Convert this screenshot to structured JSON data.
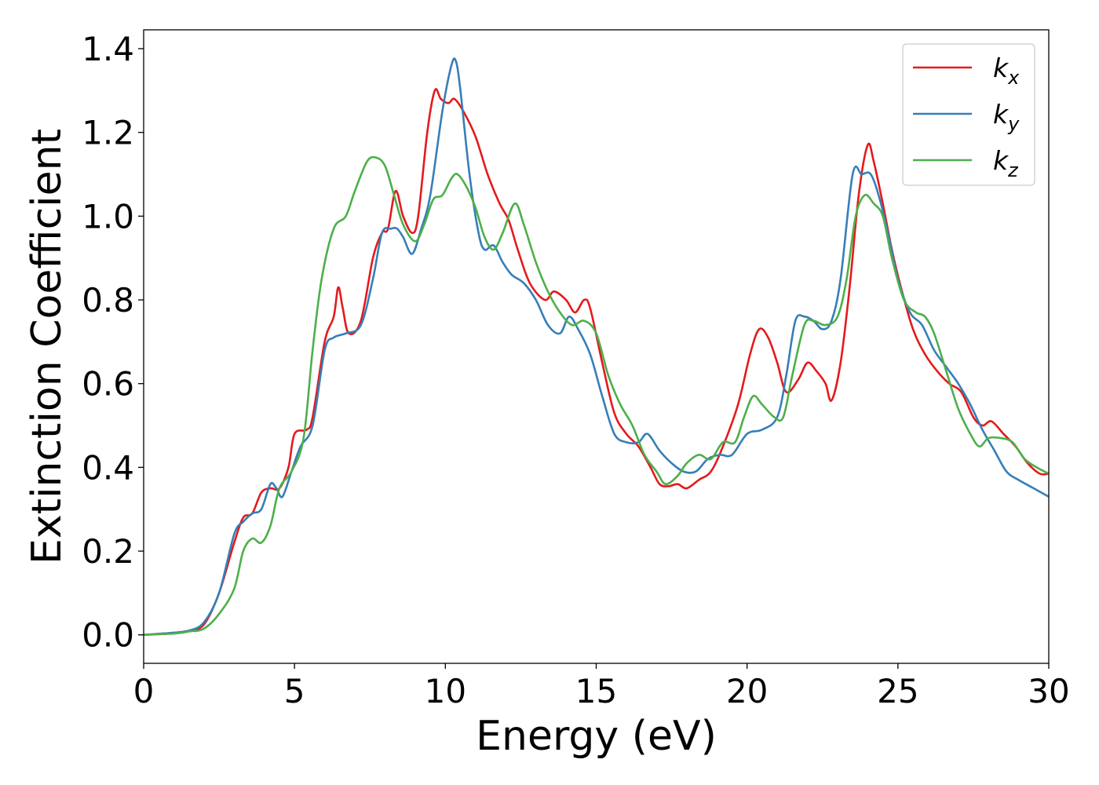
{
  "chart_data": {
    "type": "line",
    "xlabel": "Energy (eV)",
    "ylabel": "Extinction Coefficient",
    "xlim": [
      0,
      30
    ],
    "ylim": [
      -0.068,
      1.445
    ],
    "xticks": [
      0,
      5,
      10,
      15,
      20,
      25,
      30
    ],
    "xtick_labels": [
      "0",
      "5",
      "10",
      "15",
      "20",
      "25",
      "30"
    ],
    "yticks": [
      0.0,
      0.2,
      0.4,
      0.6,
      0.8,
      1.0,
      1.2,
      1.4
    ],
    "ytick_labels": [
      "0.0",
      "0.2",
      "0.4",
      "0.6",
      "0.8",
      "1.0",
      "1.2",
      "1.4"
    ],
    "grid": false,
    "legend_position": "top-right",
    "series": [
      {
        "name": "k_x",
        "label_base": "k",
        "label_sub": "x",
        "color": "#e41a1c",
        "points": [
          [
            0,
            0
          ],
          [
            1,
            0.005
          ],
          [
            1.5,
            0.01
          ],
          [
            2,
            0.025
          ],
          [
            2.5,
            0.1
          ],
          [
            3,
            0.22
          ],
          [
            3.3,
            0.28
          ],
          [
            3.6,
            0.29
          ],
          [
            3.9,
            0.34
          ],
          [
            4.2,
            0.35
          ],
          [
            4.5,
            0.35
          ],
          [
            4.8,
            0.4
          ],
          [
            5.0,
            0.48
          ],
          [
            5.4,
            0.49
          ],
          [
            5.6,
            0.52
          ],
          [
            6.0,
            0.7
          ],
          [
            6.3,
            0.76
          ],
          [
            6.45,
            0.83
          ],
          [
            6.6,
            0.78
          ],
          [
            6.8,
            0.72
          ],
          [
            7.2,
            0.75
          ],
          [
            7.6,
            0.9
          ],
          [
            7.9,
            0.96
          ],
          [
            8.1,
            0.97
          ],
          [
            8.35,
            1.06
          ],
          [
            8.6,
            1.0
          ],
          [
            8.9,
            0.96
          ],
          [
            9.1,
            1.0
          ],
          [
            9.4,
            1.2
          ],
          [
            9.65,
            1.3
          ],
          [
            9.85,
            1.28
          ],
          [
            10.1,
            1.27
          ],
          [
            10.3,
            1.28
          ],
          [
            10.6,
            1.25
          ],
          [
            11.0,
            1.19
          ],
          [
            11.4,
            1.1
          ],
          [
            11.8,
            1.03
          ],
          [
            12.1,
            0.99
          ],
          [
            12.4,
            0.92
          ],
          [
            12.8,
            0.84
          ],
          [
            13.3,
            0.8
          ],
          [
            13.6,
            0.82
          ],
          [
            14.0,
            0.8
          ],
          [
            14.3,
            0.77
          ],
          [
            14.6,
            0.8
          ],
          [
            14.8,
            0.78
          ],
          [
            15.2,
            0.65
          ],
          [
            15.6,
            0.53
          ],
          [
            16.0,
            0.48
          ],
          [
            16.4,
            0.45
          ],
          [
            16.8,
            0.4
          ],
          [
            17.1,
            0.36
          ],
          [
            17.4,
            0.355
          ],
          [
            17.7,
            0.36
          ],
          [
            18.0,
            0.35
          ],
          [
            18.4,
            0.37
          ],
          [
            18.8,
            0.39
          ],
          [
            19.2,
            0.45
          ],
          [
            19.7,
            0.55
          ],
          [
            20.1,
            0.67
          ],
          [
            20.4,
            0.73
          ],
          [
            20.7,
            0.71
          ],
          [
            21.0,
            0.65
          ],
          [
            21.3,
            0.58
          ],
          [
            21.7,
            0.61
          ],
          [
            22.0,
            0.65
          ],
          [
            22.3,
            0.63
          ],
          [
            22.6,
            0.6
          ],
          [
            22.8,
            0.56
          ],
          [
            23.1,
            0.65
          ],
          [
            23.4,
            0.83
          ],
          [
            23.7,
            1.05
          ],
          [
            24.0,
            1.17
          ],
          [
            24.2,
            1.13
          ],
          [
            24.5,
            1.03
          ],
          [
            24.8,
            0.92
          ],
          [
            25.1,
            0.83
          ],
          [
            25.5,
            0.73
          ],
          [
            25.9,
            0.67
          ],
          [
            26.3,
            0.63
          ],
          [
            26.7,
            0.6
          ],
          [
            27.1,
            0.58
          ],
          [
            27.5,
            0.52
          ],
          [
            27.8,
            0.5
          ],
          [
            28.1,
            0.51
          ],
          [
            28.5,
            0.48
          ],
          [
            28.9,
            0.45
          ],
          [
            29.3,
            0.41
          ],
          [
            29.7,
            0.385
          ],
          [
            30.0,
            0.385
          ]
        ]
      },
      {
        "name": "k_y",
        "label_base": "k",
        "label_sub": "y",
        "color": "#377eb8",
        "points": [
          [
            0,
            0
          ],
          [
            1,
            0.005
          ],
          [
            1.5,
            0.01
          ],
          [
            2,
            0.03
          ],
          [
            2.5,
            0.1
          ],
          [
            3,
            0.24
          ],
          [
            3.3,
            0.27
          ],
          [
            3.6,
            0.29
          ],
          [
            3.9,
            0.3
          ],
          [
            4.2,
            0.36
          ],
          [
            4.4,
            0.35
          ],
          [
            4.6,
            0.33
          ],
          [
            4.9,
            0.39
          ],
          [
            5.2,
            0.45
          ],
          [
            5.6,
            0.5
          ],
          [
            6.0,
            0.68
          ],
          [
            6.3,
            0.71
          ],
          [
            6.7,
            0.72
          ],
          [
            7.2,
            0.74
          ],
          [
            7.6,
            0.85
          ],
          [
            7.9,
            0.96
          ],
          [
            8.2,
            0.97
          ],
          [
            8.4,
            0.97
          ],
          [
            8.6,
            0.95
          ],
          [
            8.9,
            0.91
          ],
          [
            9.2,
            0.97
          ],
          [
            9.5,
            1.05
          ],
          [
            9.9,
            1.25
          ],
          [
            10.2,
            1.36
          ],
          [
            10.35,
            1.37
          ],
          [
            10.5,
            1.3
          ],
          [
            10.8,
            1.1
          ],
          [
            11.1,
            0.96
          ],
          [
            11.3,
            0.92
          ],
          [
            11.6,
            0.93
          ],
          [
            11.9,
            0.89
          ],
          [
            12.2,
            0.86
          ],
          [
            12.6,
            0.84
          ],
          [
            13.0,
            0.8
          ],
          [
            13.4,
            0.74
          ],
          [
            13.8,
            0.72
          ],
          [
            14.1,
            0.76
          ],
          [
            14.4,
            0.73
          ],
          [
            14.8,
            0.67
          ],
          [
            15.2,
            0.57
          ],
          [
            15.6,
            0.48
          ],
          [
            16.0,
            0.46
          ],
          [
            16.4,
            0.46
          ],
          [
            16.7,
            0.48
          ],
          [
            17.1,
            0.44
          ],
          [
            17.5,
            0.41
          ],
          [
            17.9,
            0.39
          ],
          [
            18.3,
            0.39
          ],
          [
            18.7,
            0.42
          ],
          [
            19.1,
            0.43
          ],
          [
            19.5,
            0.43
          ],
          [
            20.0,
            0.48
          ],
          [
            20.5,
            0.49
          ],
          [
            21.0,
            0.52
          ],
          [
            21.3,
            0.62
          ],
          [
            21.6,
            0.75
          ],
          [
            21.9,
            0.76
          ],
          [
            22.2,
            0.75
          ],
          [
            22.5,
            0.73
          ],
          [
            22.8,
            0.75
          ],
          [
            23.1,
            0.85
          ],
          [
            23.5,
            1.1
          ],
          [
            23.8,
            1.1
          ],
          [
            24.1,
            1.1
          ],
          [
            24.4,
            1.04
          ],
          [
            24.7,
            0.95
          ],
          [
            25.0,
            0.85
          ],
          [
            25.4,
            0.77
          ],
          [
            25.8,
            0.74
          ],
          [
            26.2,
            0.68
          ],
          [
            26.6,
            0.64
          ],
          [
            27.0,
            0.6
          ],
          [
            27.4,
            0.55
          ],
          [
            27.8,
            0.49
          ],
          [
            28.2,
            0.44
          ],
          [
            28.6,
            0.39
          ],
          [
            29.0,
            0.37
          ],
          [
            29.5,
            0.35
          ],
          [
            30.0,
            0.33
          ]
        ]
      },
      {
        "name": "k_z",
        "label_base": "k",
        "label_sub": "z",
        "color": "#4daf4a",
        "points": [
          [
            0,
            0
          ],
          [
            1,
            0.003
          ],
          [
            1.5,
            0.008
          ],
          [
            2,
            0.015
          ],
          [
            2.5,
            0.05
          ],
          [
            3,
            0.11
          ],
          [
            3.3,
            0.2
          ],
          [
            3.6,
            0.23
          ],
          [
            3.9,
            0.22
          ],
          [
            4.2,
            0.26
          ],
          [
            4.5,
            0.35
          ],
          [
            4.9,
            0.39
          ],
          [
            5.3,
            0.47
          ],
          [
            5.6,
            0.68
          ],
          [
            5.9,
            0.85
          ],
          [
            6.3,
            0.97
          ],
          [
            6.7,
            1.0
          ],
          [
            7.0,
            1.06
          ],
          [
            7.4,
            1.13
          ],
          [
            7.7,
            1.14
          ],
          [
            8.0,
            1.12
          ],
          [
            8.3,
            1.05
          ],
          [
            8.6,
            0.98
          ],
          [
            9.0,
            0.94
          ],
          [
            9.3,
            0.98
          ],
          [
            9.6,
            1.04
          ],
          [
            9.9,
            1.05
          ],
          [
            10.2,
            1.09
          ],
          [
            10.4,
            1.1
          ],
          [
            10.7,
            1.07
          ],
          [
            11.0,
            1.02
          ],
          [
            11.3,
            0.95
          ],
          [
            11.6,
            0.92
          ],
          [
            11.9,
            0.96
          ],
          [
            12.3,
            1.03
          ],
          [
            12.6,
            0.98
          ],
          [
            13.0,
            0.89
          ],
          [
            13.4,
            0.82
          ],
          [
            13.8,
            0.77
          ],
          [
            14.2,
            0.74
          ],
          [
            14.6,
            0.75
          ],
          [
            15.0,
            0.72
          ],
          [
            15.4,
            0.62
          ],
          [
            15.8,
            0.55
          ],
          [
            16.2,
            0.5
          ],
          [
            16.6,
            0.43
          ],
          [
            17.0,
            0.39
          ],
          [
            17.3,
            0.36
          ],
          [
            17.7,
            0.38
          ],
          [
            18.0,
            0.41
          ],
          [
            18.4,
            0.43
          ],
          [
            18.8,
            0.42
          ],
          [
            19.2,
            0.46
          ],
          [
            19.6,
            0.46
          ],
          [
            19.9,
            0.52
          ],
          [
            20.2,
            0.57
          ],
          [
            20.5,
            0.55
          ],
          [
            20.9,
            0.52
          ],
          [
            21.2,
            0.52
          ],
          [
            21.5,
            0.62
          ],
          [
            21.9,
            0.74
          ],
          [
            22.2,
            0.75
          ],
          [
            22.6,
            0.74
          ],
          [
            23.0,
            0.76
          ],
          [
            23.3,
            0.85
          ],
          [
            23.6,
            1.0
          ],
          [
            23.9,
            1.05
          ],
          [
            24.2,
            1.03
          ],
          [
            24.5,
            1.0
          ],
          [
            24.8,
            0.9
          ],
          [
            25.2,
            0.8
          ],
          [
            25.6,
            0.77
          ],
          [
            25.9,
            0.76
          ],
          [
            26.2,
            0.72
          ],
          [
            26.6,
            0.63
          ],
          [
            27.0,
            0.54
          ],
          [
            27.4,
            0.48
          ],
          [
            27.7,
            0.45
          ],
          [
            28.0,
            0.47
          ],
          [
            28.4,
            0.47
          ],
          [
            28.8,
            0.46
          ],
          [
            29.2,
            0.42
          ],
          [
            29.6,
            0.4
          ],
          [
            30.0,
            0.385
          ]
        ]
      }
    ]
  }
}
